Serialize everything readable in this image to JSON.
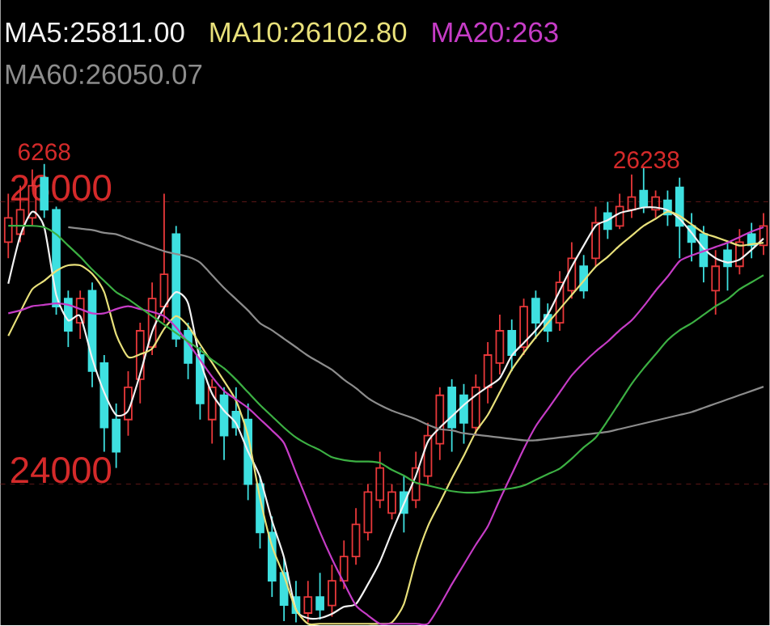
{
  "chart_data": {
    "type": "candlestick",
    "categories": [
      null,
      null,
      null,
      null,
      null,
      null,
      null,
      null,
      null,
      null,
      null,
      null,
      null,
      null,
      null,
      null,
      null,
      null,
      null,
      null,
      null,
      null,
      null,
      null,
      null,
      null,
      null,
      null,
      null,
      null,
      null,
      null,
      null,
      null,
      null,
      null,
      null,
      null,
      null,
      null,
      null,
      null,
      null,
      null,
      null,
      null,
      null,
      null,
      null,
      null,
      null,
      null,
      null,
      null,
      null,
      null,
      null,
      null,
      null,
      null,
      null,
      null,
      null,
      null
    ],
    "ohlc": [
      [
        25714,
        26057,
        25600,
        25886
      ],
      [
        25771,
        26114,
        25714,
        25943
      ],
      [
        25886,
        26229,
        25829,
        26114
      ],
      [
        26171,
        26268,
        25886,
        25943
      ],
      [
        25943,
        25966,
        25200,
        25257
      ],
      [
        25314,
        25371,
        24971,
        25086
      ],
      [
        25143,
        25371,
        25029,
        25314
      ],
      [
        25371,
        25429,
        24686,
        24800
      ],
      [
        24857,
        24914,
        24229,
        24400
      ],
      [
        24457,
        24571,
        24114,
        24229
      ],
      [
        24457,
        24800,
        24343,
        24686
      ],
      [
        24743,
        25143,
        24571,
        25086
      ],
      [
        24971,
        25429,
        24914,
        25314
      ],
      [
        25257,
        26057,
        25143,
        25486
      ],
      [
        25771,
        25829,
        24971,
        25029
      ],
      [
        25086,
        25143,
        24743,
        24857
      ],
      [
        24914,
        24971,
        24457,
        24571
      ],
      [
        24457,
        24743,
        24286,
        24686
      ],
      [
        24629,
        24686,
        24171,
        24343
      ],
      [
        24514,
        24686,
        24343,
        24400
      ],
      [
        24457,
        24571,
        23886,
        24000
      ],
      [
        24000,
        24057,
        23543,
        23657
      ],
      [
        23657,
        23771,
        23200,
        23314
      ],
      [
        23371,
        23486,
        23029,
        23143
      ],
      [
        23200,
        23314,
        23020,
        23086
      ],
      [
        23086,
        23314,
        23020,
        23200
      ],
      [
        23200,
        23371,
        23040,
        23110
      ],
      [
        23140,
        23429,
        23060,
        23314
      ],
      [
        23314,
        23600,
        23257,
        23486
      ],
      [
        23486,
        23829,
        23429,
        23714
      ],
      [
        23657,
        24000,
        23600,
        23943
      ],
      [
        23886,
        24229,
        23829,
        24114
      ],
      [
        23794,
        24000,
        23749,
        23943
      ],
      [
        23943,
        24057,
        23657,
        23794
      ],
      [
        23886,
        24229,
        23829,
        24114
      ],
      [
        24057,
        24434,
        24000,
        24343
      ],
      [
        24286,
        24686,
        24171,
        24629
      ],
      [
        24686,
        24743,
        24229,
        24400
      ],
      [
        24629,
        24709,
        24286,
        24434
      ],
      [
        24400,
        24777,
        24343,
        24686
      ],
      [
        24686,
        25006,
        24571,
        24914
      ],
      [
        24857,
        25200,
        24777,
        25086
      ],
      [
        25086,
        25166,
        24800,
        24914
      ],
      [
        24971,
        25314,
        24914,
        25257
      ],
      [
        25314,
        25371,
        25029,
        25143
      ],
      [
        25200,
        25280,
        25006,
        25086
      ],
      [
        25143,
        25509,
        25086,
        25429
      ],
      [
        25371,
        25714,
        25314,
        25600
      ],
      [
        25543,
        25623,
        25314,
        25371
      ],
      [
        25600,
        25966,
        25543,
        25851
      ],
      [
        25920,
        26000,
        25737,
        25806
      ],
      [
        25829,
        26057,
        25806,
        25966
      ],
      [
        25943,
        26194,
        25886,
        26034
      ],
      [
        26080,
        26238,
        25920,
        25966
      ],
      [
        25943,
        26080,
        25886,
        26034
      ],
      [
        26011,
        26080,
        25829,
        25909
      ],
      [
        26103,
        26171,
        25600,
        25829
      ],
      [
        25829,
        25920,
        25577,
        25714
      ],
      [
        25771,
        25829,
        25429,
        25543
      ],
      [
        25371,
        25657,
        25200,
        25543
      ],
      [
        25657,
        25714,
        25371,
        25543
      ],
      [
        25543,
        25806,
        25486,
        25714
      ],
      [
        25771,
        25851,
        25600,
        25691
      ],
      [
        25691,
        25920,
        25623,
        25829
      ]
    ],
    "series": [
      {
        "name": "MA5:25811.00",
        "type": "line",
        "color": "#f2f2f2",
        "values": [
          25420,
          25760,
          25930,
          25820,
          25340,
          25160,
          25190,
          24890,
          24650,
          24490,
          24520,
          24780,
          25080,
          25250,
          25360,
          25280,
          24880,
          24640,
          24520,
          24430,
          24230,
          24050,
          23740,
          23480,
          23110,
          23050,
          23050,
          23080,
          23130,
          23150,
          23290,
          23450,
          23660,
          23860,
          24060,
          24300,
          24400,
          24480,
          24560,
          24630,
          24690,
          24750,
          24910,
          25000,
          25090,
          25200,
          25370,
          25540,
          25690,
          25830,
          25870,
          25920,
          25940,
          25960,
          25960,
          25940,
          25880,
          25780,
          25670,
          25600,
          25570,
          25590,
          25660,
          25740
        ]
      },
      {
        "name": "MA10:26102.80",
        "type": "line",
        "color": "#e8e07a",
        "values": [
          25050,
          25220,
          25380,
          25440,
          25510,
          25550,
          25550,
          25490,
          25360,
          25060,
          24900,
          24920,
          24960,
          25100,
          25190,
          25120,
          24990,
          24860,
          24730,
          24590,
          24340,
          23900,
          23560,
          23350,
          23110,
          23010,
          23010,
          23010,
          23010,
          23010,
          23010,
          23010,
          23020,
          23150,
          23460,
          23700,
          23870,
          24040,
          24200,
          24370,
          24490,
          24650,
          24810,
          24930,
          25040,
          25140,
          25240,
          25340,
          25440,
          25540,
          25610,
          25690,
          25760,
          25830,
          25880,
          25930,
          25900,
          25840,
          25780,
          25750,
          25720,
          25690,
          25700,
          25710
        ]
      },
      {
        "name": "MA20:263",
        "type": "line",
        "color": "#c63cc6",
        "values": [
          25210,
          25230,
          25260,
          25270,
          25280,
          25270,
          25240,
          25210,
          25210,
          25240,
          25260,
          25240,
          25220,
          25190,
          25110,
          25000,
          24880,
          24760,
          24660,
          24600,
          24540,
          24460,
          24380,
          24290,
          24080,
          23870,
          23660,
          23470,
          23300,
          23140,
          23070,
          23010,
          23010,
          23010,
          23010,
          23010,
          23140,
          23290,
          23430,
          23570,
          23700,
          23890,
          24070,
          24250,
          24410,
          24530,
          24650,
          24770,
          24860,
          24940,
          25010,
          25090,
          25160,
          25260,
          25370,
          25470,
          25580,
          25620,
          25650,
          25680,
          25710,
          25750,
          25790,
          25820
        ]
      },
      {
        "name": "MA60:26050.07",
        "type": "line",
        "color": "#8c8c8c",
        "values": [
          null,
          null,
          null,
          null,
          null,
          25820,
          25810,
          25800,
          25780,
          25770,
          25740,
          25710,
          25680,
          25650,
          25630,
          25610,
          25570,
          25480,
          25390,
          25310,
          25230,
          25140,
          25090,
          25030,
          24970,
          24910,
          24860,
          24810,
          24740,
          24680,
          24610,
          24560,
          24520,
          24490,
          24460,
          24420,
          24390,
          24380,
          24360,
          24350,
          24340,
          24330,
          24320,
          24310,
          24310,
          24320,
          24330,
          24340,
          24350,
          24360,
          24370,
          24390,
          24410,
          24430,
          24450,
          24470,
          24490,
          24510,
          24540,
          24570,
          24600,
          24630,
          24660,
          24690
        ]
      },
      {
        "type": "line",
        "color": "#3cb043",
        "values": [
          25830,
          25830,
          25830,
          25820,
          25770,
          25690,
          25610,
          25520,
          25440,
          25360,
          25310,
          25250,
          25190,
          25130,
          25070,
          25010,
          24950,
          24880,
          24820,
          24740,
          24650,
          24560,
          24480,
          24400,
          24330,
          24280,
          24240,
          24190,
          24170,
          24160,
          24160,
          24150,
          24100,
          24060,
          24010,
          23990,
          23970,
          23950,
          23940,
          23940,
          23950,
          23960,
          23970,
          23990,
          24030,
          24070,
          24110,
          24180,
          24260,
          24330,
          24450,
          24580,
          24710,
          24820,
          24920,
          25020,
          25090,
          25140,
          25200,
          25260,
          25310,
          25380,
          25430,
          25480
        ]
      }
    ],
    "ylim": [
      23000,
      27430
    ],
    "yticks": [
      24000,
      26000
    ],
    "grid": "y",
    "tick_labels": "y",
    "legend": "top left",
    "annotations": [
      {
        "text": "6268",
        "y": 26268
      },
      "26238"
    ]
  }
}
